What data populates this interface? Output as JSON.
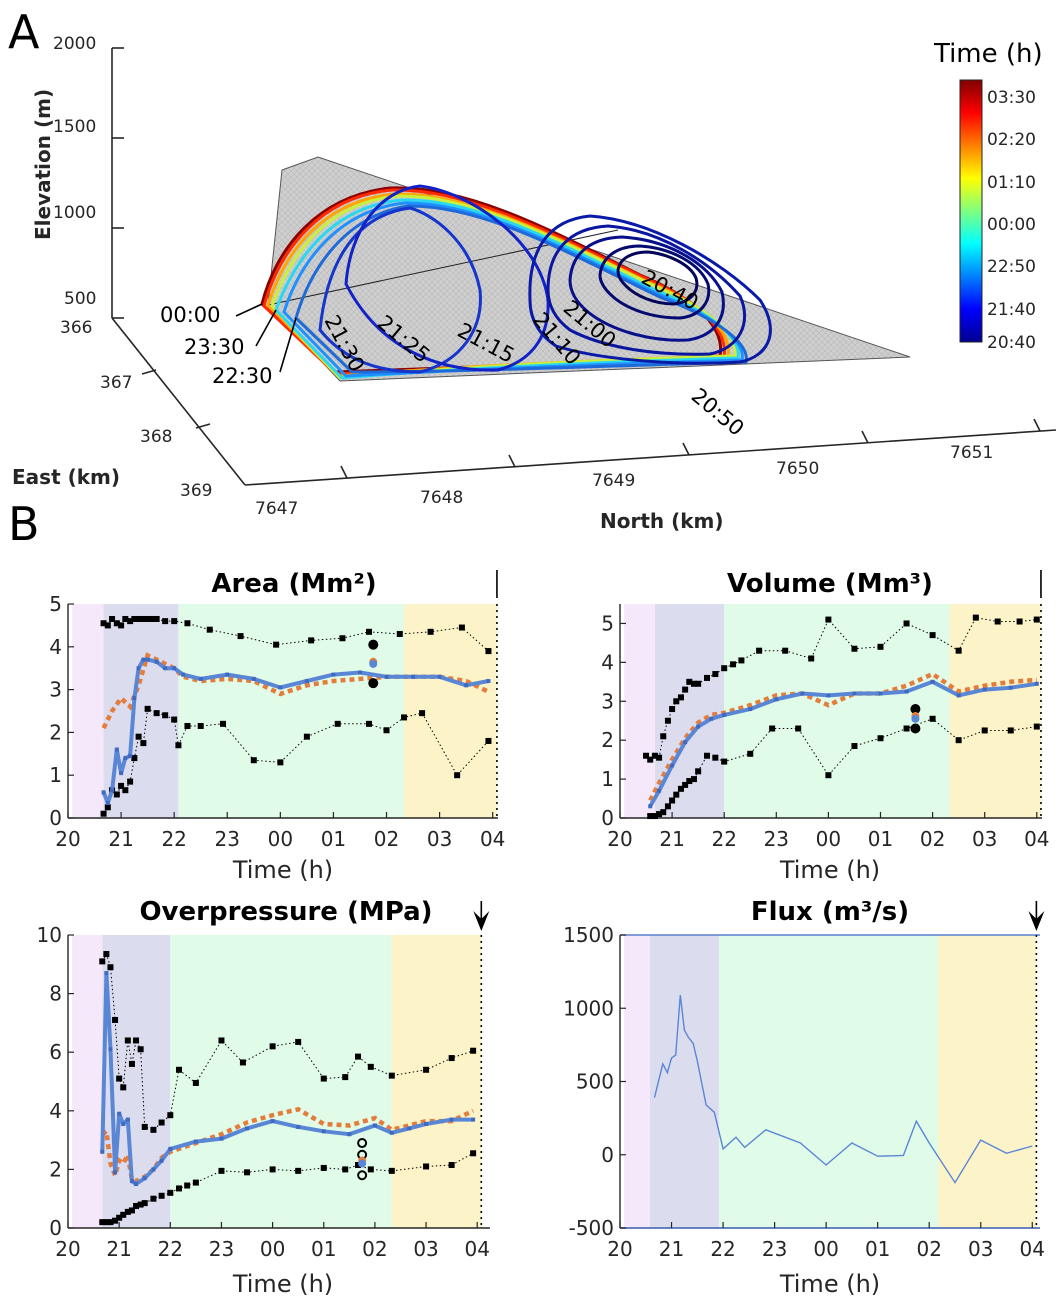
{
  "panel_a": {
    "letter": "A",
    "axes": {
      "elevation_label": "Elevation (m)",
      "east_label": "East (km)",
      "north_label": "North (km)",
      "elevation_ticks": [
        "2000",
        "1500",
        "1000",
        "500"
      ],
      "east_ticks": [
        "366",
        "367",
        "368",
        "369"
      ],
      "north_ticks": [
        "7647",
        "7648",
        "7649",
        "7650",
        "7651"
      ]
    },
    "contour_labels": [
      "20:40",
      "20:50",
      "21:00",
      "21:10",
      "21:15",
      "21:25",
      "21:30",
      "22:30",
      "23:30",
      "00:00"
    ],
    "colorbar": {
      "title": "Time (h)",
      "ticks": [
        "03:30",
        "02:20",
        "01:10",
        "00:00",
        "22:50",
        "21:40",
        "20:40"
      ]
    }
  },
  "panel_b_letter": "B",
  "phase_colors": [
    "#f6e8fb",
    "#dcdcef",
    "#e0fbe8",
    "#fcf4c8"
  ],
  "chart_data": [
    {
      "type": "line",
      "title": "Area (Mm²)",
      "title_color": "#000000",
      "xlabel": "Time (h)",
      "ylabel": "",
      "xticks": [
        "20",
        "21",
        "22",
        "23",
        "00",
        "01",
        "02",
        "03",
        "04"
      ],
      "xlim": [
        20,
        28.1
      ],
      "ylim": [
        0,
        5
      ],
      "yticks": [
        "0",
        "1",
        "2",
        "3",
        "4",
        "5"
      ],
      "phases": [
        [
          20.08,
          20.67
        ],
        [
          20.67,
          22.08
        ],
        [
          22.08,
          26.33
        ],
        [
          26.33,
          28.08
        ]
      ],
      "end_marker": "line",
      "series": [
        {
          "style": "upper",
          "x": [
            20.67,
            20.75,
            20.83,
            20.92,
            21.0,
            21.08,
            21.17,
            21.25,
            21.33,
            21.42,
            21.5,
            21.58,
            21.67,
            21.83,
            22.0,
            22.25,
            22.67,
            23.25,
            23.92,
            24.58,
            25.17,
            25.67,
            26.25,
            26.83,
            27.42,
            27.92
          ],
          "y": [
            4.55,
            4.5,
            4.65,
            4.55,
            4.5,
            4.65,
            4.6,
            4.65,
            4.65,
            4.65,
            4.65,
            4.65,
            4.65,
            4.6,
            4.6,
            4.55,
            4.4,
            4.25,
            4.05,
            4.15,
            4.2,
            4.35,
            4.3,
            4.35,
            4.45,
            3.9
          ]
        },
        {
          "style": "lower",
          "x": [
            20.67,
            20.75,
            20.83,
            20.92,
            21.0,
            21.08,
            21.17,
            21.25,
            21.33,
            21.42,
            21.5,
            21.67,
            21.83,
            22.0,
            22.08,
            22.25,
            22.5,
            22.92,
            23.5,
            24.0,
            24.5,
            25.08,
            25.67,
            26.0,
            26.33,
            26.67,
            27.33,
            27.92
          ],
          "y": [
            0.1,
            0.25,
            0.65,
            0.55,
            0.75,
            0.65,
            0.85,
            1.4,
            1.9,
            1.75,
            2.55,
            2.45,
            2.4,
            2.3,
            1.7,
            2.15,
            2.15,
            2.2,
            1.35,
            1.3,
            1.9,
            2.2,
            2.2,
            2.05,
            2.35,
            2.45,
            1.0,
            1.8
          ]
        },
        {
          "style": "fit",
          "x": [
            20.67,
            20.83,
            21.0,
            21.17,
            21.33,
            21.5,
            21.67,
            21.83,
            22.0,
            22.17,
            22.5,
            23.0,
            23.5,
            24.0,
            24.5,
            25.0,
            25.5,
            26.0,
            26.5,
            27.0,
            27.5,
            27.92
          ],
          "y": [
            2.1,
            2.5,
            2.8,
            2.6,
            3.1,
            3.8,
            3.7,
            3.6,
            3.5,
            3.3,
            3.2,
            3.25,
            3.2,
            2.9,
            3.1,
            3.2,
            3.25,
            3.3,
            3.3,
            3.3,
            3.2,
            2.95
          ]
        },
        {
          "style": "obs",
          "x": [
            20.67,
            20.75,
            20.83,
            20.92,
            21.0,
            21.08,
            21.17,
            21.25,
            21.33,
            21.42,
            21.5,
            21.67,
            21.83,
            22.0,
            22.17,
            22.5,
            23.0,
            23.5,
            24.0,
            24.5,
            25.0,
            25.5,
            26.0,
            26.5,
            27.0,
            27.5,
            27.92
          ],
          "y": [
            0.6,
            0.35,
            0.65,
            1.6,
            1.05,
            1.4,
            1.45,
            2.8,
            3.5,
            3.7,
            3.7,
            3.65,
            3.5,
            3.5,
            3.35,
            3.25,
            3.35,
            3.25,
            3.05,
            3.2,
            3.35,
            3.4,
            3.3,
            3.3,
            3.3,
            3.1,
            3.2
          ]
        }
      ],
      "markers": [
        {
          "x": 25.75,
          "y": 4.05,
          "kind": "filled"
        },
        {
          "x": 25.75,
          "y": 3.65,
          "kind": "orange"
        },
        {
          "x": 25.75,
          "y": 3.6,
          "kind": "blue"
        },
        {
          "x": 25.75,
          "y": 3.15,
          "kind": "filled"
        }
      ]
    },
    {
      "type": "line",
      "title": "Volume (Mm³)",
      "title_color": "#05164a",
      "xlabel": "Time (h)",
      "ylabel": "",
      "xticks": [
        "20",
        "21",
        "22",
        "23",
        "00",
        "01",
        "02",
        "03",
        "04"
      ],
      "xlim": [
        20,
        28.1
      ],
      "ylim": [
        0,
        5.5
      ],
      "yticks": [
        "0",
        "1",
        "2",
        "3",
        "4",
        "5"
      ],
      "phases": [
        [
          20.08,
          20.67
        ],
        [
          20.67,
          22.0
        ],
        [
          22.0,
          26.33
        ],
        [
          26.33,
          28.08
        ]
      ],
      "end_marker": "line",
      "series": [
        {
          "style": "upper",
          "x": [
            20.5,
            20.58,
            20.67,
            20.75,
            20.83,
            20.92,
            21.0,
            21.08,
            21.17,
            21.25,
            21.33,
            21.42,
            21.5,
            21.67,
            21.83,
            22.0,
            22.17,
            22.33,
            22.67,
            23.17,
            23.67,
            24.0,
            24.5,
            25.0,
            25.5,
            26.0,
            26.5,
            26.83,
            27.25,
            27.67,
            28.0
          ],
          "y": [
            1.6,
            1.5,
            1.6,
            1.55,
            2.1,
            2.5,
            2.8,
            3.0,
            3.1,
            3.3,
            3.5,
            3.45,
            3.45,
            3.6,
            3.7,
            3.85,
            3.95,
            4.05,
            4.3,
            4.3,
            4.1,
            5.1,
            4.35,
            4.4,
            5.0,
            4.7,
            4.3,
            5.15,
            5.05,
            5.05,
            5.1
          ]
        },
        {
          "style": "lower",
          "x": [
            20.58,
            20.67,
            20.75,
            20.83,
            20.92,
            21.0,
            21.08,
            21.17,
            21.25,
            21.33,
            21.42,
            21.5,
            21.67,
            21.83,
            22.0,
            22.5,
            22.92,
            23.42,
            24.0,
            24.5,
            25.0,
            25.5,
            26.0,
            26.5,
            27.0,
            27.5,
            28.0
          ],
          "y": [
            0.05,
            0.05,
            0.1,
            0.15,
            0.3,
            0.45,
            0.6,
            0.75,
            0.85,
            0.95,
            1.0,
            1.2,
            1.6,
            1.55,
            1.45,
            1.65,
            2.3,
            2.3,
            1.1,
            1.85,
            2.05,
            2.3,
            2.55,
            2.0,
            2.25,
            2.25,
            2.35
          ]
        },
        {
          "style": "fit",
          "x": [
            20.58,
            20.75,
            21.0,
            21.25,
            21.5,
            21.75,
            22.0,
            22.5,
            23.0,
            23.5,
            24.0,
            24.5,
            25.0,
            25.5,
            26.0,
            26.5,
            27.0,
            27.5,
            28.0
          ],
          "y": [
            0.45,
            0.9,
            1.5,
            2.05,
            2.45,
            2.65,
            2.7,
            2.9,
            3.15,
            3.2,
            2.9,
            3.2,
            3.2,
            3.4,
            3.7,
            3.25,
            3.4,
            3.5,
            3.55
          ]
        },
        {
          "style": "obs",
          "x": [
            20.58,
            20.75,
            21.0,
            21.25,
            21.5,
            21.75,
            22.0,
            22.5,
            23.0,
            23.5,
            24.0,
            24.5,
            25.0,
            25.5,
            26.0,
            26.5,
            27.0,
            27.5,
            28.0
          ],
          "y": [
            0.3,
            0.7,
            1.35,
            1.95,
            2.35,
            2.55,
            2.65,
            2.8,
            3.05,
            3.2,
            3.15,
            3.2,
            3.2,
            3.25,
            3.5,
            3.15,
            3.3,
            3.35,
            3.45
          ]
        }
      ],
      "markers": [
        {
          "x": 25.67,
          "y": 2.8,
          "kind": "filled"
        },
        {
          "x": 25.67,
          "y": 2.62,
          "kind": "orange"
        },
        {
          "x": 25.67,
          "y": 2.55,
          "kind": "blue"
        },
        {
          "x": 25.67,
          "y": 2.3,
          "kind": "filled"
        }
      ]
    },
    {
      "type": "line",
      "title": "Overpressure (MPa)",
      "title_color": "#000000",
      "xlabel": "Time (h)",
      "ylabel": "",
      "xticks": [
        "20",
        "21",
        "22",
        "23",
        "00",
        "01",
        "02",
        "03",
        "04"
      ],
      "xlim": [
        20,
        28.25
      ],
      "ylim": [
        0,
        10
      ],
      "yticks": [
        "0",
        "2",
        "4",
        "6",
        "8",
        "10"
      ],
      "phases": [
        [
          20.08,
          20.67
        ],
        [
          20.67,
          22.0
        ],
        [
          22.0,
          26.33
        ],
        [
          26.33,
          28.08
        ]
      ],
      "end_marker": "arrow",
      "series": [
        {
          "style": "upper",
          "x": [
            20.67,
            20.75,
            20.83,
            20.92,
            21.0,
            21.08,
            21.17,
            21.25,
            21.33,
            21.42,
            21.5,
            21.67,
            21.83,
            22.0,
            22.17,
            22.5,
            23.0,
            23.42,
            24.0,
            24.5,
            25.0,
            25.42,
            25.67,
            25.92,
            26.33,
            27.0,
            27.5,
            27.92
          ],
          "y": [
            9.1,
            9.35,
            8.9,
            7.1,
            5.1,
            4.8,
            6.4,
            5.6,
            6.4,
            6.1,
            3.45,
            3.35,
            3.6,
            3.85,
            5.4,
            4.95,
            6.4,
            5.65,
            6.2,
            6.35,
            5.1,
            5.15,
            5.85,
            5.5,
            5.2,
            5.4,
            5.8,
            6.05
          ]
        },
        {
          "style": "lower",
          "x": [
            20.67,
            20.75,
            20.83,
            20.92,
            21.0,
            21.08,
            21.17,
            21.25,
            21.33,
            21.42,
            21.5,
            21.67,
            21.83,
            22.0,
            22.17,
            22.33,
            22.5,
            23.0,
            23.5,
            24.0,
            24.5,
            25.0,
            25.42,
            25.67,
            25.92,
            26.33,
            27.0,
            27.5,
            27.92
          ],
          "y": [
            0.2,
            0.2,
            0.2,
            0.25,
            0.35,
            0.45,
            0.55,
            0.6,
            0.75,
            0.8,
            0.85,
            1.0,
            1.1,
            1.2,
            1.35,
            1.45,
            1.55,
            1.95,
            1.9,
            2.0,
            1.95,
            2.05,
            2.0,
            2.15,
            2.0,
            1.95,
            2.1,
            2.15,
            2.55
          ]
        },
        {
          "style": "fit",
          "x": [
            20.67,
            20.75,
            20.83,
            20.92,
            21.0,
            21.08,
            21.17,
            21.25,
            21.33,
            21.5,
            21.67,
            21.83,
            22.0,
            22.5,
            23.0,
            23.5,
            24.0,
            24.5,
            25.0,
            25.5,
            26.0,
            26.33,
            26.67,
            27.0,
            27.5,
            27.92
          ],
          "y": [
            3.2,
            3.3,
            2.2,
            1.8,
            2.3,
            2.2,
            2.5,
            1.65,
            1.6,
            1.75,
            2.0,
            2.4,
            2.6,
            2.9,
            3.2,
            3.6,
            3.85,
            4.05,
            3.55,
            3.5,
            3.75,
            3.35,
            3.5,
            3.65,
            3.65,
            4.0
          ]
        },
        {
          "style": "obs",
          "x": [
            20.67,
            20.75,
            20.83,
            20.92,
            21.0,
            21.08,
            21.17,
            21.25,
            21.33,
            21.5,
            21.67,
            21.83,
            22.0,
            22.5,
            23.0,
            23.5,
            24.0,
            24.5,
            25.0,
            25.5,
            26.0,
            26.33,
            26.67,
            27.0,
            27.5,
            27.92
          ],
          "y": [
            2.6,
            8.7,
            6.1,
            1.9,
            3.9,
            3.55,
            3.7,
            1.6,
            1.5,
            1.7,
            2.0,
            2.3,
            2.7,
            2.95,
            3.05,
            3.4,
            3.65,
            3.45,
            3.3,
            3.2,
            3.5,
            3.25,
            3.4,
            3.55,
            3.7,
            3.7
          ]
        }
      ],
      "markers": [
        {
          "x": 25.75,
          "y": 2.9,
          "kind": "open"
        },
        {
          "x": 25.75,
          "y": 2.5,
          "kind": "open"
        },
        {
          "x": 25.75,
          "y": 2.3,
          "kind": "orange"
        },
        {
          "x": 25.75,
          "y": 2.2,
          "kind": "blue"
        },
        {
          "x": 25.75,
          "y": 1.8,
          "kind": "open"
        }
      ]
    },
    {
      "type": "line",
      "title": "Flux (m³/s)",
      "title_color": "#000000",
      "xlabel": "Time (h)",
      "ylabel": "",
      "xticks": [
        "20",
        "21",
        "22",
        "23",
        "00",
        "01",
        "02",
        "03",
        "04"
      ],
      "xlim": [
        20,
        28.15
      ],
      "ylim": [
        -500,
        1500
      ],
      "yticks": [
        "-500",
        "0",
        "500",
        "1000",
        "1500"
      ],
      "phases": [
        [
          20.08,
          20.58
        ],
        [
          20.58,
          21.92
        ],
        [
          21.92,
          26.17
        ],
        [
          26.17,
          28.08
        ]
      ],
      "end_marker": "arrow",
      "series": [
        {
          "style": "flux",
          "x": [
            20.67,
            20.83,
            20.92,
            21.0,
            21.08,
            21.17,
            21.25,
            21.33,
            21.42,
            21.5,
            21.67,
            21.83,
            22.0,
            22.25,
            22.42,
            22.83,
            23.5,
            24.0,
            24.5,
            25.0,
            25.5,
            25.75,
            26.0,
            26.5,
            27.0,
            27.5,
            28.0
          ],
          "y": [
            390,
            620,
            560,
            660,
            680,
            1090,
            850,
            800,
            760,
            640,
            340,
            290,
            40,
            120,
            50,
            170,
            80,
            -70,
            80,
            -10,
            -5,
            230,
            80,
            -190,
            100,
            10,
            60
          ]
        }
      ],
      "markers": []
    }
  ]
}
